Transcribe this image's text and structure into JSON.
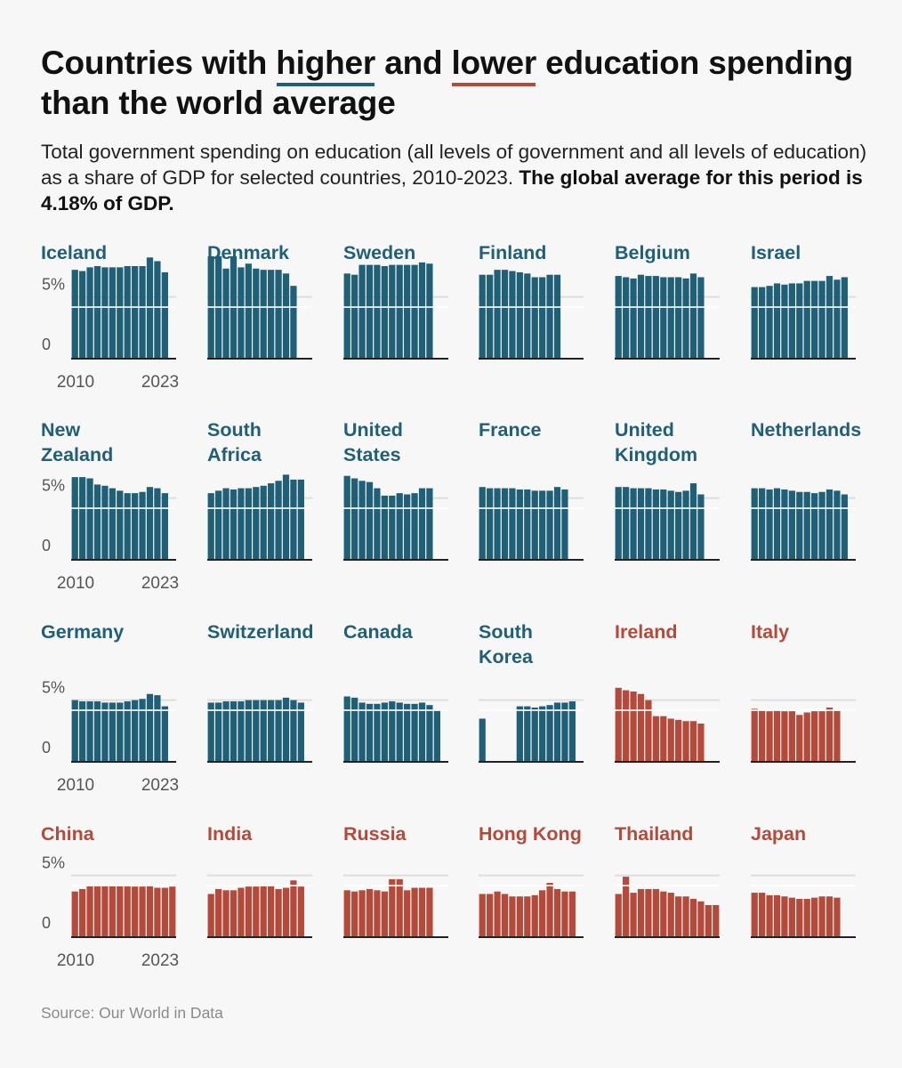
{
  "title": {
    "part1": "Countries with ",
    "higher": "higher",
    "part2": " and ",
    "lower": "lower",
    "part3": " education spending than the world average"
  },
  "subtitle": {
    "text": "Total government spending on education (all levels of government and all levels of education) as a share of GDP for selected countries, 2010-2023. ",
    "bold": "The global average for this period is 4.18% of GDP."
  },
  "source": "Source: Our World in Data",
  "colors": {
    "higher": "#1f5f78",
    "lower": "#b5493a",
    "gridline": "#dddddd",
    "average_line": "#ffffff"
  },
  "chart_data": {
    "type": "bar",
    "layout": "small-multiples",
    "x": [
      2010,
      2011,
      2012,
      2013,
      2014,
      2015,
      2016,
      2017,
      2018,
      2019,
      2020,
      2021,
      2022,
      2023
    ],
    "x_tick_labels": [
      "2010",
      "2023"
    ],
    "y_tick_labels": [
      "5%",
      "0"
    ],
    "ylim": [
      0,
      7.5
    ],
    "reference_value": 4.18,
    "countries": [
      {
        "name": "Iceland",
        "group": "higher",
        "values": [
          7.2,
          7.1,
          7.4,
          7.5,
          7.4,
          7.4,
          7.4,
          7.5,
          7.5,
          7.5,
          8.2,
          7.9,
          7.0,
          null
        ]
      },
      {
        "name": "Denmark",
        "group": "higher",
        "values": [
          8.3,
          8.3,
          7.3,
          8.3,
          7.4,
          7.7,
          7.3,
          7.2,
          7.2,
          7.2,
          6.9,
          5.9,
          null,
          null
        ]
      },
      {
        "name": "Sweden",
        "group": "higher",
        "values": [
          6.9,
          6.8,
          7.6,
          7.6,
          7.6,
          7.5,
          7.6,
          7.6,
          7.6,
          7.6,
          7.8,
          7.7,
          null,
          null
        ]
      },
      {
        "name": "Finland",
        "group": "higher",
        "values": [
          6.8,
          6.8,
          7.2,
          7.2,
          7.1,
          7.0,
          6.9,
          6.6,
          6.6,
          6.8,
          6.8,
          null,
          null,
          null
        ]
      },
      {
        "name": "Belgium",
        "group": "higher",
        "values": [
          6.7,
          6.6,
          6.5,
          6.8,
          6.7,
          6.7,
          6.6,
          6.6,
          6.6,
          6.5,
          6.9,
          6.6,
          null,
          null
        ]
      },
      {
        "name": "Israel",
        "group": "higher",
        "values": [
          5.8,
          5.8,
          5.9,
          6.1,
          6.0,
          6.1,
          6.1,
          6.3,
          6.3,
          6.3,
          6.7,
          6.4,
          6.6,
          null
        ]
      },
      {
        "name": "New Zealand",
        "group": "higher",
        "values": [
          6.7,
          6.7,
          6.6,
          6.1,
          6.0,
          5.8,
          5.6,
          5.4,
          5.4,
          5.5,
          5.9,
          5.8,
          5.4,
          null
        ]
      },
      {
        "name": "South Africa",
        "group": "higher",
        "values": [
          5.4,
          5.6,
          5.8,
          5.7,
          5.8,
          5.8,
          5.9,
          6.0,
          6.2,
          6.4,
          6.9,
          6.5,
          6.5,
          null
        ]
      },
      {
        "name": "United States",
        "group": "higher",
        "values": [
          6.8,
          6.6,
          6.4,
          6.3,
          5.8,
          5.2,
          5.2,
          5.4,
          5.3,
          5.4,
          5.8,
          5.8,
          null,
          null
        ]
      },
      {
        "name": "France",
        "group": "higher",
        "values": [
          5.9,
          5.8,
          5.8,
          5.8,
          5.8,
          5.7,
          5.7,
          5.6,
          5.6,
          5.6,
          5.9,
          5.7,
          null,
          null
        ]
      },
      {
        "name": "United Kingdom",
        "group": "higher",
        "values": [
          5.9,
          5.9,
          5.8,
          5.8,
          5.8,
          5.7,
          5.7,
          5.6,
          5.5,
          5.6,
          6.2,
          5.3,
          null,
          null
        ]
      },
      {
        "name": "Netherlands",
        "group": "higher",
        "values": [
          5.8,
          5.8,
          5.7,
          5.8,
          5.7,
          5.6,
          5.5,
          5.5,
          5.4,
          5.5,
          5.7,
          5.6,
          5.3,
          null
        ]
      },
      {
        "name": "Germany",
        "group": "higher",
        "values": [
          5.0,
          4.9,
          4.9,
          4.9,
          4.8,
          4.8,
          4.8,
          4.9,
          5.0,
          5.1,
          5.5,
          5.4,
          4.5,
          null
        ]
      },
      {
        "name": "Switzerland",
        "group": "higher",
        "values": [
          4.8,
          4.8,
          4.9,
          4.9,
          4.9,
          5.0,
          5.0,
          5.0,
          5.0,
          5.0,
          5.2,
          5.0,
          4.8,
          null
        ]
      },
      {
        "name": "Canada",
        "group": "higher",
        "values": [
          5.3,
          5.2,
          4.8,
          4.7,
          4.7,
          4.8,
          4.9,
          4.8,
          4.7,
          4.7,
          4.8,
          4.6,
          4.2,
          null
        ]
      },
      {
        "name": "South Korea",
        "group": "higher",
        "values": [
          3.5,
          null,
          null,
          null,
          null,
          4.5,
          4.5,
          4.4,
          4.5,
          4.6,
          4.8,
          4.8,
          4.9,
          null
        ]
      },
      {
        "name": "Ireland",
        "group": "lower",
        "values": [
          6.0,
          5.8,
          5.7,
          5.5,
          5.0,
          3.7,
          3.7,
          3.5,
          3.4,
          3.3,
          3.3,
          3.1,
          null,
          null
        ]
      },
      {
        "name": "Italy",
        "group": "lower",
        "values": [
          4.3,
          4.2,
          4.1,
          4.2,
          4.1,
          4.1,
          3.8,
          4.0,
          4.1,
          4.1,
          4.4,
          4.2,
          null,
          null
        ]
      },
      {
        "name": "China",
        "group": "lower",
        "values": [
          3.7,
          3.9,
          4.2,
          4.2,
          4.2,
          4.2,
          4.2,
          4.2,
          4.1,
          4.1,
          4.2,
          4.0,
          4.0,
          4.1
        ]
      },
      {
        "name": "India",
        "group": "lower",
        "values": [
          3.5,
          3.9,
          3.8,
          3.8,
          4.0,
          4.1,
          4.1,
          4.2,
          4.2,
          3.9,
          4.0,
          4.6,
          4.1,
          null
        ]
      },
      {
        "name": "Russia",
        "group": "lower",
        "values": [
          3.8,
          3.7,
          3.8,
          3.9,
          3.8,
          3.7,
          4.7,
          4.7,
          3.8,
          4.0,
          4.0,
          4.0,
          null,
          null
        ]
      },
      {
        "name": "Hong Kong",
        "group": "lower",
        "values": [
          3.5,
          3.5,
          3.7,
          3.5,
          3.3,
          3.3,
          3.3,
          3.4,
          3.8,
          4.4,
          3.9,
          3.7,
          3.7,
          null
        ]
      },
      {
        "name": "Thailand",
        "group": "lower",
        "values": [
          3.5,
          4.9,
          3.6,
          3.9,
          3.9,
          3.9,
          3.7,
          3.6,
          3.3,
          3.3,
          3.1,
          2.9,
          2.6,
          2.6
        ]
      },
      {
        "name": "Japan",
        "group": "lower",
        "values": [
          3.6,
          3.6,
          3.4,
          3.4,
          3.3,
          3.2,
          3.1,
          3.1,
          3.2,
          3.3,
          3.3,
          3.2,
          null,
          null
        ]
      }
    ]
  }
}
